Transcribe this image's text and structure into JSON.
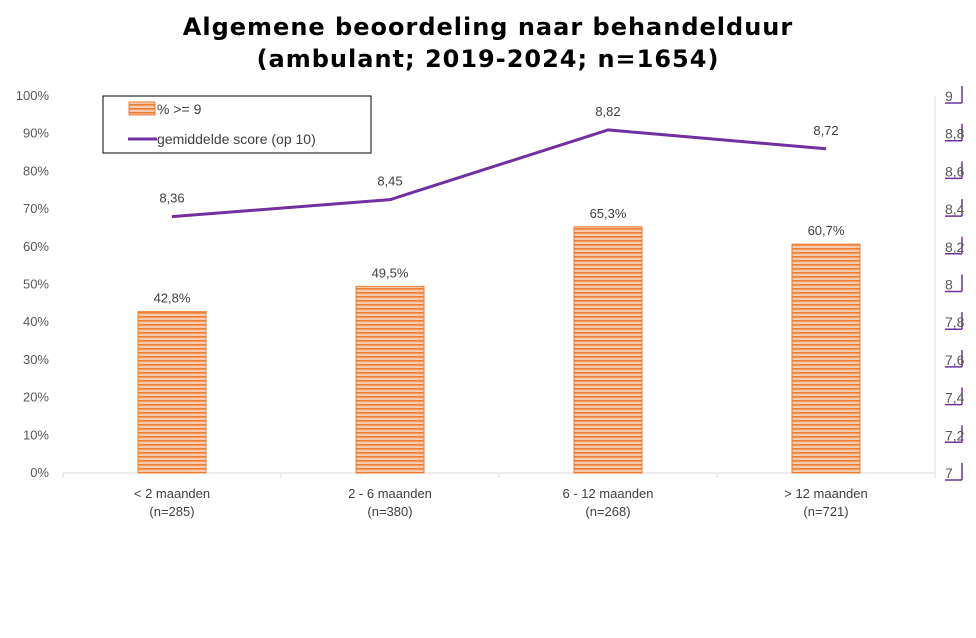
{
  "chart_data": {
    "type": "bar",
    "title": [
      "Algemene beoordeling naar behandelduur",
      "(ambulant; 2019-2024; n=1654)"
    ],
    "categories": [
      [
        "< 2 maanden",
        "(n=285)"
      ],
      [
        "2 - 6 maanden",
        "(n=380)"
      ],
      [
        "6 - 12 maanden",
        "(n=268)"
      ],
      [
        "> 12 maanden",
        "(n=721)"
      ]
    ],
    "series": [
      {
        "name": "% >= 9",
        "type": "bar",
        "axis": "left",
        "values": [
          42.8,
          49.5,
          65.3,
          60.7
        ],
        "labels": [
          "42,8%",
          "49,5%",
          "65,3%",
          "60,7%"
        ],
        "color": "#F4B183",
        "stripe_color": "#ED7D31"
      },
      {
        "name": "gemiddelde score (op 10)",
        "type": "line",
        "axis": "right",
        "values": [
          8.36,
          8.45,
          8.82,
          8.72
        ],
        "labels": [
          "8,36",
          "8,45",
          "8,82",
          "8,72"
        ],
        "color": "#7030A0"
      }
    ],
    "y_left": {
      "lim": [
        0,
        100
      ],
      "ticks": [
        "0%",
        "10%",
        "20%",
        "30%",
        "40%",
        "50%",
        "60%",
        "70%",
        "80%",
        "90%",
        "100%"
      ]
    },
    "y_right": {
      "lim": [
        7,
        9
      ],
      "ticks": [
        "7",
        "7,2",
        "7,4",
        "7,6",
        "7,8",
        "8",
        "8,2",
        "8,4",
        "8,6",
        "8,8",
        "9"
      ],
      "color": "#7030A0"
    },
    "grid": false,
    "legend": "top-left"
  }
}
